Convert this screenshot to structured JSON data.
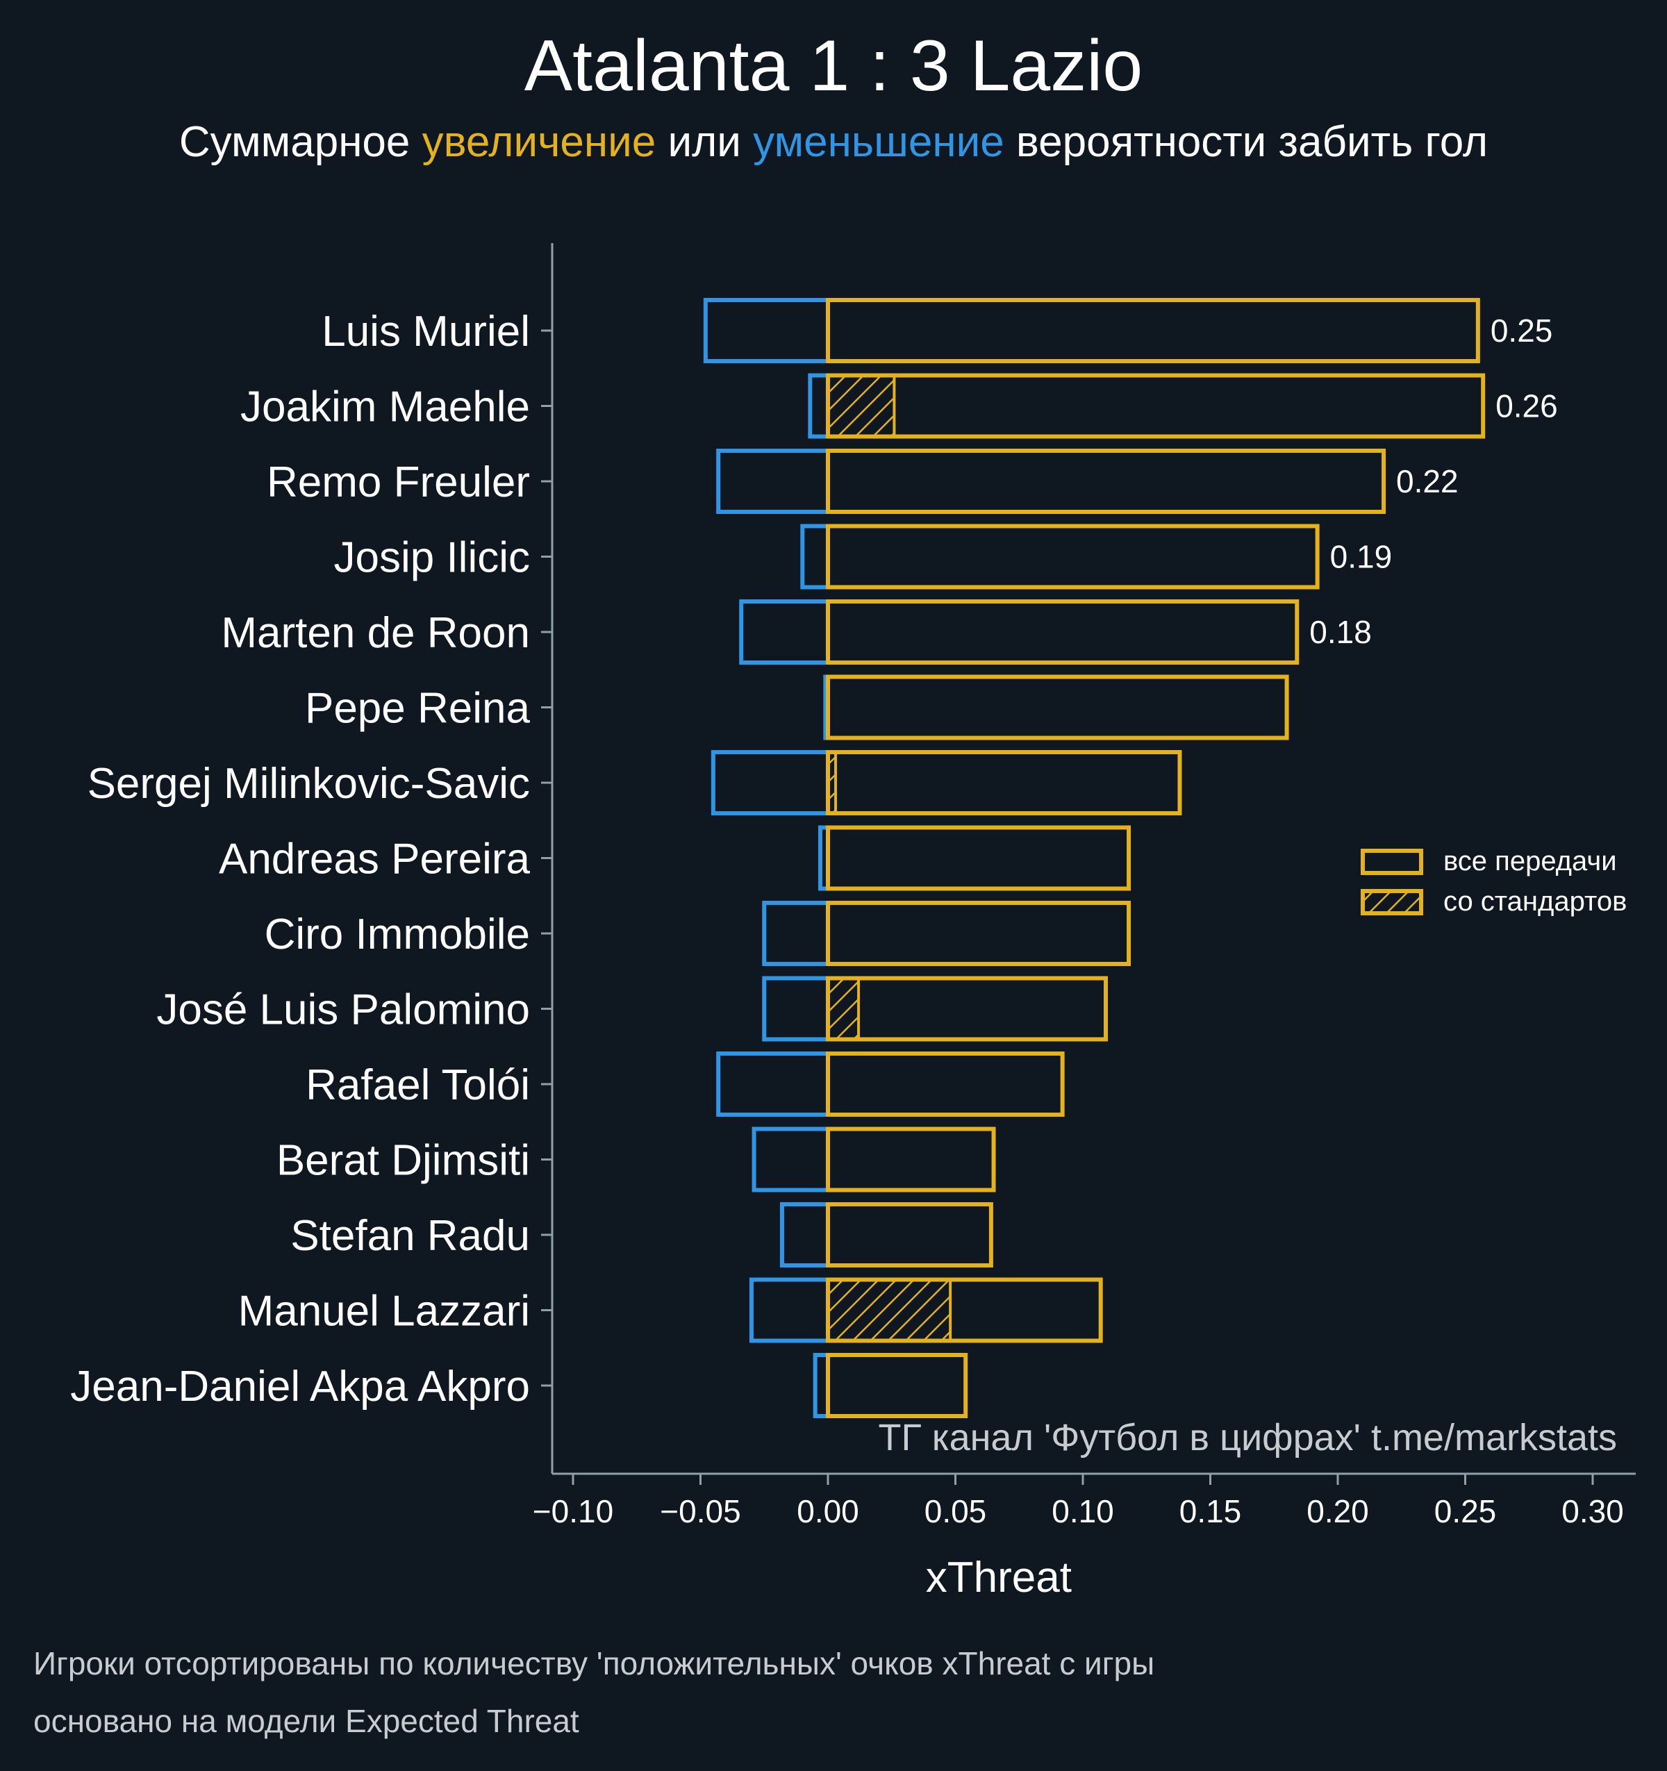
{
  "title": "Atalanta 1 : 3 Lazio",
  "subtitle": {
    "part1": "Суммарное ",
    "increase_word": "увеличение",
    "part2": " или ",
    "decrease_word": "уменьшение",
    "part3": " вероятности забить гол"
  },
  "colors": {
    "background": "#0f1820",
    "positive": "#e3b21d",
    "negative": "#2f95e4",
    "axis": "#8fa0a8",
    "text": "#ffffff",
    "watermark": "#c8ccd0"
  },
  "chart_data": {
    "type": "bar",
    "orientation": "horizontal",
    "xlabel": "xThreat",
    "xlim": [
      -0.11,
      0.32
    ],
    "xticks": [
      -0.1,
      -0.05,
      0.0,
      0.05,
      0.1,
      0.15,
      0.2,
      0.25,
      0.3
    ],
    "xtick_labels": [
      "−0.10",
      "−0.05",
      "0.00",
      "0.05",
      "0.10",
      "0.15",
      "0.20",
      "0.25",
      "0.30"
    ],
    "categories": [
      "Luis Muriel",
      "Joakim Maehle",
      "Remo Freuler",
      "Josip Ilicic",
      "Marten de Roon",
      "Pepe Reina",
      "Sergej Milinkovic-Savic",
      "Andreas Pereira",
      "Ciro Immobile",
      "José Luis Palomino",
      "Rafael Tolói",
      "Berat Djimsiti",
      "Stefan Radu",
      "Manuel Lazzari",
      "Jean-Daniel Akpa Akpro"
    ],
    "series": [
      {
        "name": "все передачи (положительные)",
        "values": [
          0.255,
          0.257,
          0.218,
          0.192,
          0.184,
          0.18,
          0.138,
          0.118,
          0.118,
          0.109,
          0.092,
          0.065,
          0.064,
          0.107,
          0.054
        ]
      },
      {
        "name": "все передачи (отрицательные)",
        "values": [
          -0.048,
          -0.007,
          -0.043,
          -0.01,
          -0.034,
          -0.001,
          -0.045,
          -0.003,
          -0.025,
          -0.025,
          -0.043,
          -0.029,
          -0.018,
          -0.03,
          -0.005
        ]
      },
      {
        "name": "со стандартов",
        "values": [
          0,
          0.026,
          0,
          0,
          0,
          0,
          0.003,
          0,
          0,
          0.012,
          0,
          0,
          0,
          0.048,
          0
        ]
      }
    ],
    "value_labels": [
      "0.25",
      "0.26",
      "0.22",
      "0.19",
      "0.18",
      null,
      null,
      null,
      null,
      null,
      null,
      null,
      null,
      null,
      null
    ],
    "legend": {
      "position": "right",
      "items": [
        {
          "label": "все передачи",
          "style": "outline"
        },
        {
          "label": "со стандартов",
          "style": "hatched"
        }
      ]
    },
    "watermark": "ТГ канал 'Футбол в цифрах'  t.me/markstats"
  },
  "footnotes": [
    "Игроки отсортированы по количеству 'положительных' очков xThreat с игры",
    "основано на модели Expected Threat"
  ]
}
